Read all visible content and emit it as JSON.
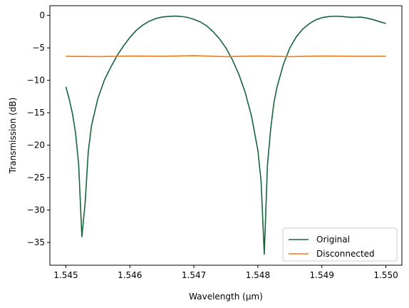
{
  "chart_data": {
    "type": "line",
    "title": "",
    "xlabel": "Wavelength (μm)",
    "ylabel": "Transmission (dB)",
    "xlim": [
      1.54475,
      1.55025
    ],
    "ylim": [
      -38.5,
      1.5
    ],
    "x_ticks": [
      1.545,
      1.546,
      1.547,
      1.548,
      1.549,
      1.55
    ],
    "x_tick_labels": [
      "1.545",
      "1.546",
      "1.547",
      "1.548",
      "1.549",
      "1.550"
    ],
    "y_ticks": [
      0,
      -5,
      -10,
      -15,
      -20,
      -25,
      -30,
      -35
    ],
    "y_tick_labels": [
      "0",
      "−5",
      "−10",
      "−15",
      "−20",
      "−25",
      "−30",
      "−35"
    ],
    "grid": false,
    "legend_position": "lower right",
    "series": [
      {
        "name": "Original",
        "color": "#17653a",
        "x": [
          1.545,
          1.54505,
          1.5451,
          1.54515,
          1.5452,
          1.54525,
          1.5453,
          1.54535,
          1.5454,
          1.5455,
          1.5456,
          1.5457,
          1.5458,
          1.5459,
          1.546,
          1.5461,
          1.5462,
          1.5463,
          1.5464,
          1.5465,
          1.5466,
          1.5467,
          1.5468,
          1.5469,
          1.547,
          1.5471,
          1.5472,
          1.5473,
          1.5474,
          1.5475,
          1.5476,
          1.5477,
          1.5478,
          1.5479,
          1.548,
          1.54805,
          1.5481,
          1.54815,
          1.5482,
          1.54825,
          1.5483,
          1.5484,
          1.5485,
          1.5486,
          1.5487,
          1.5488,
          1.5489,
          1.549,
          1.5491,
          1.5492,
          1.5493,
          1.5494,
          1.5495,
          1.5496,
          1.5497,
          1.5498,
          1.5499,
          1.55
        ],
        "y": [
          -11.0,
          -12.8,
          -15.0,
          -18.0,
          -23.0,
          -34.1,
          -29.0,
          -21.0,
          -17.0,
          -12.8,
          -10.0,
          -8.0,
          -6.2,
          -4.7,
          -3.4,
          -2.3,
          -1.5,
          -0.9,
          -0.5,
          -0.25,
          -0.15,
          -0.1,
          -0.15,
          -0.3,
          -0.6,
          -1.0,
          -1.6,
          -2.5,
          -3.6,
          -5.0,
          -6.8,
          -9.0,
          -11.8,
          -15.5,
          -20.8,
          -25.5,
          -36.8,
          -23.0,
          -17.5,
          -13.5,
          -11.0,
          -7.5,
          -5.0,
          -3.3,
          -2.1,
          -1.3,
          -0.7,
          -0.35,
          -0.18,
          -0.12,
          -0.15,
          -0.25,
          -0.3,
          -0.25,
          -0.4,
          -0.65,
          -0.95,
          -1.25
        ]
      },
      {
        "name": "Disconnected",
        "color": "#f07d1a",
        "x": [
          1.545,
          1.5455,
          1.546,
          1.5465,
          1.547,
          1.5475,
          1.548,
          1.5485,
          1.549,
          1.5495,
          1.55
        ],
        "y": [
          -6.3,
          -6.35,
          -6.25,
          -6.3,
          -6.2,
          -6.35,
          -6.25,
          -6.35,
          -6.25,
          -6.3,
          -6.3
        ]
      }
    ]
  }
}
